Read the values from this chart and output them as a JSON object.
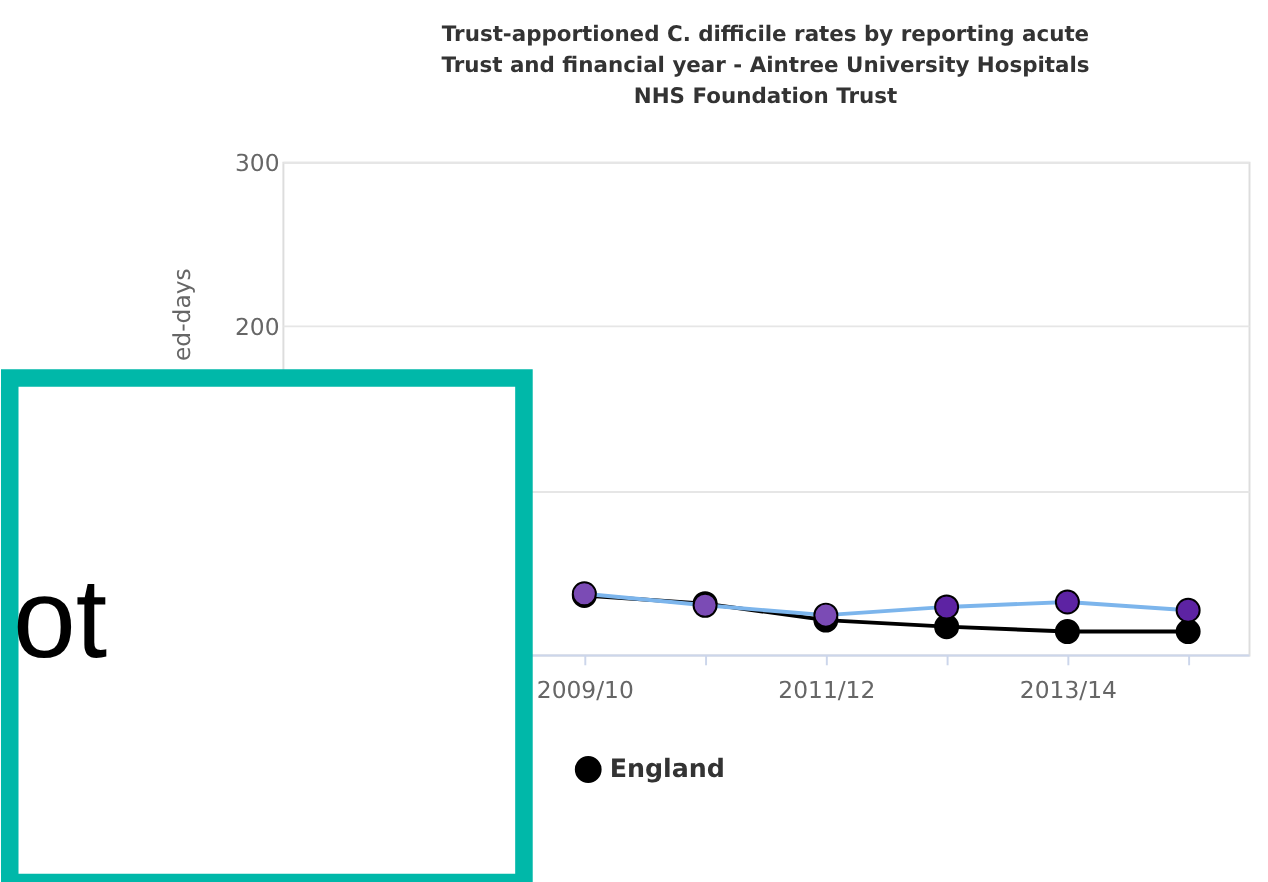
{
  "chart_data": {
    "type": "line",
    "title": "Trust-apportioned C. difficile rates by reporting acute Trust and financial year - Aintree University Hospitals NHS Foundation Trust",
    "ylabel": "ed-days",
    "categories": [
      null,
      null,
      "2009/10",
      null,
      "2011/12",
      null,
      "2013/14",
      null
    ],
    "series": [
      {
        "name": "England",
        "color": "#000000",
        "values": [
          null,
          null,
          36,
          31,
          21,
          17,
          14,
          14
        ]
      },
      {
        "color": "#7cb5ec",
        "colors": [
          null,
          null,
          "#7b4bb5",
          "#7b4bb5",
          "#7b4bb5",
          "#5d23a3",
          "#5d23a3",
          "#5d23a3"
        ],
        "values": [
          null,
          null,
          37,
          30,
          24,
          29,
          32,
          27
        ]
      }
    ],
    "ylim": [
      0,
      300
    ],
    "yticks": [
      {
        "value": 0,
        "label": null
      },
      {
        "value": 100,
        "label": null
      },
      200,
      300
    ],
    "grid": "y",
    "legend": "bottom",
    "marker": "circle",
    "line_style": "solid",
    "annotations": [
      "ot"
    ]
  }
}
